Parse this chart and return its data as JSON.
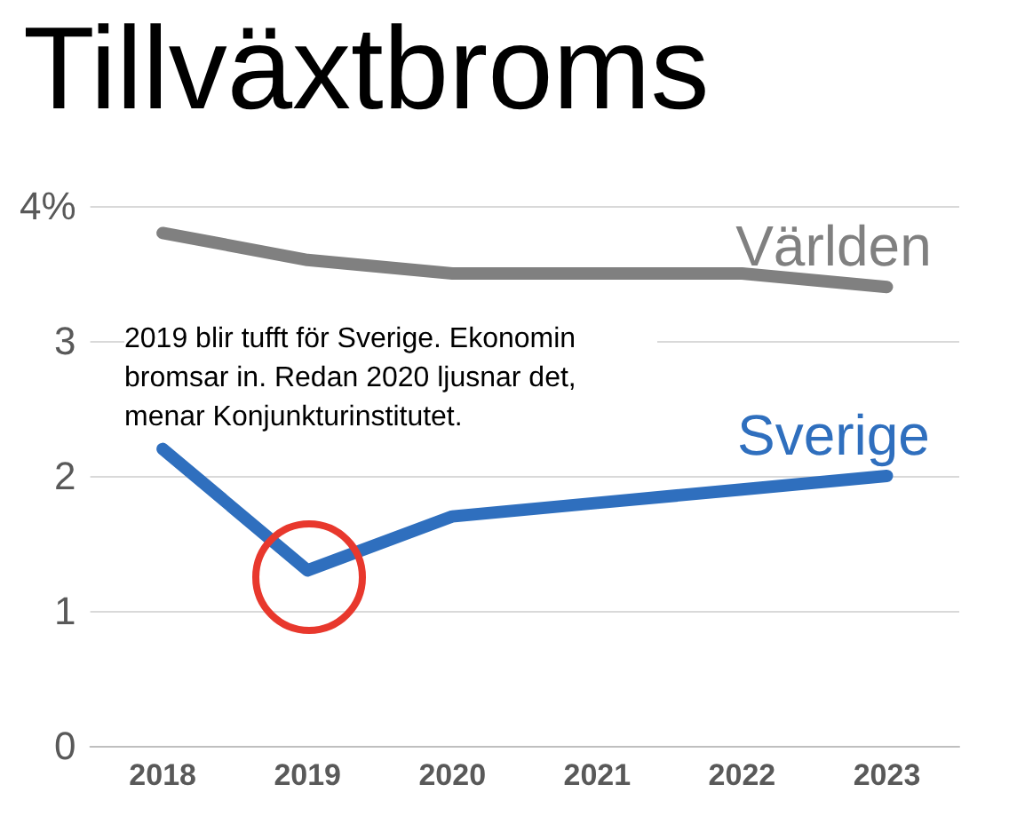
{
  "chart_data": {
    "type": "line",
    "title": "Tillväxtbroms",
    "categories": [
      "2018",
      "2019",
      "2020",
      "2021",
      "2022",
      "2023"
    ],
    "series": [
      {
        "name": "Världen",
        "color": "#808080",
        "values": [
          3.8,
          3.6,
          3.5,
          3.5,
          3.5,
          3.4
        ]
      },
      {
        "name": "Sverige",
        "color": "#2f6fbe",
        "values": [
          2.2,
          1.3,
          1.7,
          1.8,
          1.9,
          2.0
        ]
      }
    ],
    "ylim": [
      0,
      4
    ],
    "yticks": [
      0,
      1,
      2,
      3,
      {
        "value": 4,
        "label": "4%"
      }
    ],
    "grid": "y",
    "legend": false,
    "marker": "none",
    "line_style": "solid",
    "annotations": [
      "2019 blir tufft för Sverige. Ekonomin bromsar in. Redan 2020 ljusnar det, menar Konjunkturinstitutet."
    ]
  }
}
